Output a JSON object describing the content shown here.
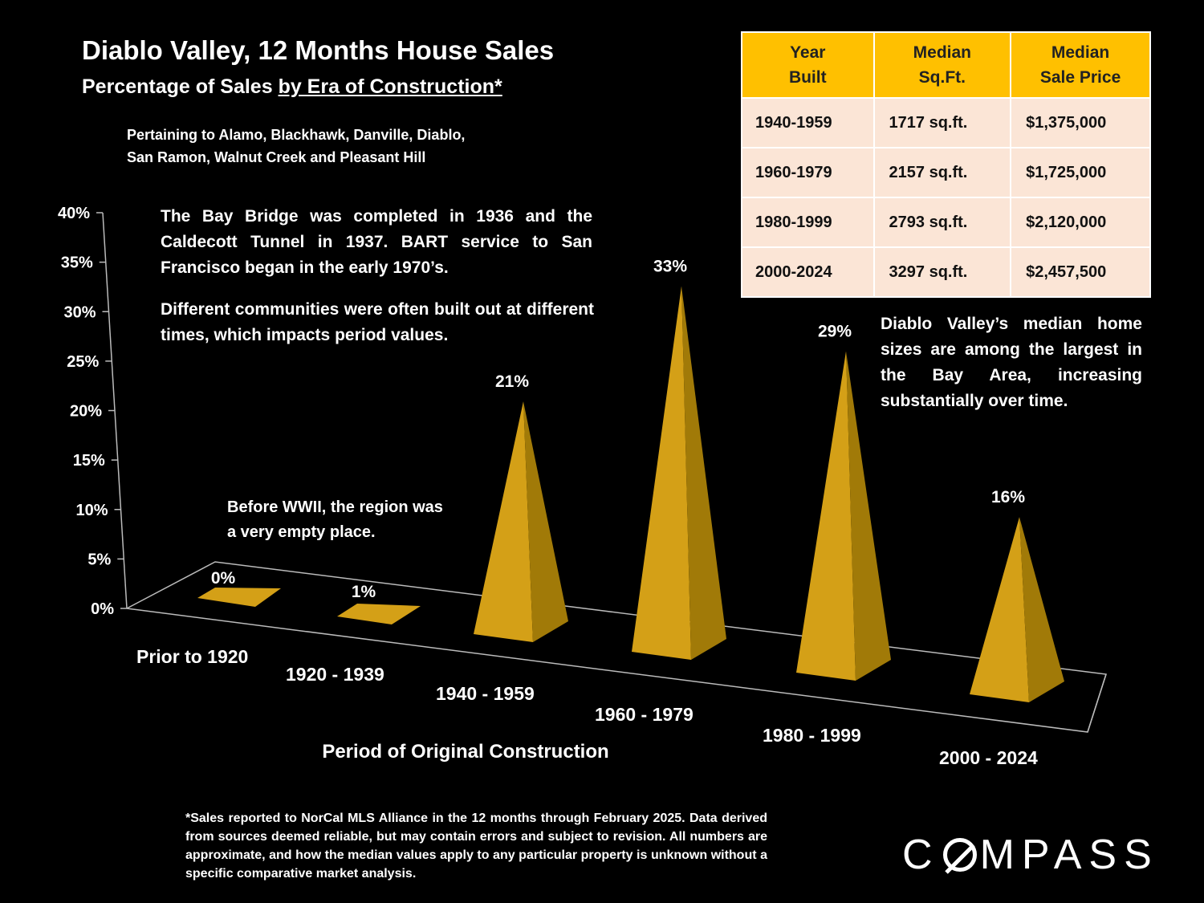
{
  "title": "Diablo Valley, 12 Months House Sales",
  "subtitle_prefix": "Percentage of Sales ",
  "subtitle_underlined": "by Era of Construction*",
  "pertaining": [
    "Pertaining to Alamo, Blackhawk, Danville, Diablo,",
    "San Ramon, Walnut Creek and Pleasant Hill"
  ],
  "notes": {
    "bridge": "The Bay Bridge was completed in  1936 and the Caldecott Tunnel in 1937. BART service to San Francisco began in the early 1970’s.",
    "communities": "Different communities were often built out at different times, which impacts period values.",
    "wwii": "Before WWII, the region was a very empty place.",
    "sizes": "Diablo Valley’s median home sizes are among the largest in the Bay Area, increasing substantially over time."
  },
  "table": {
    "headers": [
      [
        "Year",
        "Built"
      ],
      [
        "Median",
        "Sq.Ft."
      ],
      [
        "Median",
        "Sale Price"
      ]
    ],
    "rows": [
      [
        "1940-1959",
        "1717 sq.ft.",
        "$1,375,000"
      ],
      [
        "1960-1979",
        "2157 sq.ft.",
        "$1,725,000"
      ],
      [
        "1980-1999",
        "2793 sq.ft.",
        "$2,120,000"
      ],
      [
        "2000-2024",
        "3297 sq.ft.",
        "$2,457,500"
      ]
    ]
  },
  "footnote": "*Sales reported to NorCal MLS Alliance in the 12 months through February 2025. Data derived from sources deemed reliable, but may contain errors and subject to revision. All numbers are approximate, and how the median values apply to any particular property is unknown without a specific comparative market analysis.",
  "logo": "COMPASS",
  "colors": {
    "bar": "#d4a017",
    "header": "#ffc000",
    "table_body": "#fbe5d6"
  },
  "chart_data": {
    "type": "bar",
    "shape": "3d-pyramid",
    "categories": [
      "Prior to 1920",
      "1920 - 1939",
      "1940 - 1959",
      "1960 - 1979",
      "1980 - 1999",
      "2000 - 2024"
    ],
    "values": [
      0,
      1,
      21,
      33,
      29,
      16
    ],
    "value_labels": [
      "0%",
      "1%",
      "21%",
      "33%",
      "29%",
      "16%"
    ],
    "xlabel": "Period of Original Construction",
    "ylabel": "",
    "ylim": [
      0,
      40
    ],
    "yticks": [
      "0%",
      "5%",
      "10%",
      "15%",
      "20%",
      "25%",
      "30%",
      "35%",
      "40%"
    ],
    "grid": false
  }
}
